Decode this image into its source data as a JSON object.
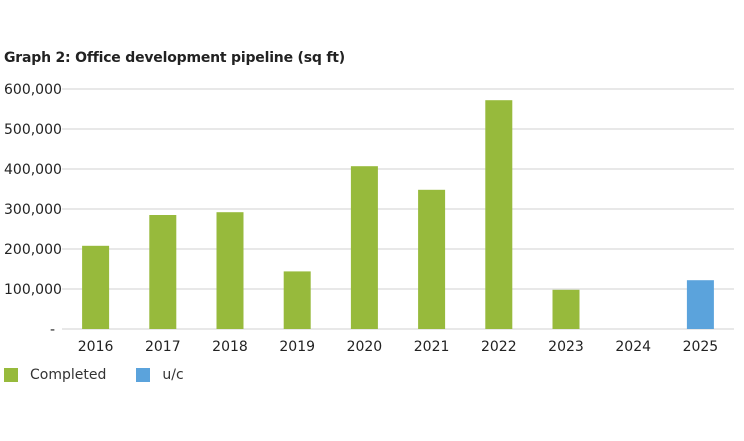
{
  "chart_data": {
    "type": "bar",
    "title": "Graph 2: Office development pipeline (sq ft)",
    "xlabel": "",
    "ylabel": "",
    "categories": [
      "2016",
      "2017",
      "2018",
      "2019",
      "2020",
      "2021",
      "2022",
      "2023",
      "2024",
      "2025"
    ],
    "series": [
      {
        "name": "Completed",
        "color": "#97BA3C",
        "values": [
          208000,
          285000,
          292000,
          144000,
          407000,
          348000,
          572000,
          98000,
          0,
          0
        ]
      },
      {
        "name": "u/c",
        "color": "#5BA3DC",
        "values": [
          0,
          0,
          0,
          0,
          0,
          0,
          0,
          0,
          0,
          122000
        ]
      }
    ],
    "ylim": [
      0,
      600000
    ],
    "yticks": [
      0,
      100000,
      200000,
      300000,
      400000,
      500000,
      600000
    ],
    "ytick_labels": [
      "-",
      "100,000",
      "200,000",
      "300,000",
      "400,000",
      "500,000",
      "600,000"
    ],
    "grid": true,
    "legend": "bottom-left"
  }
}
